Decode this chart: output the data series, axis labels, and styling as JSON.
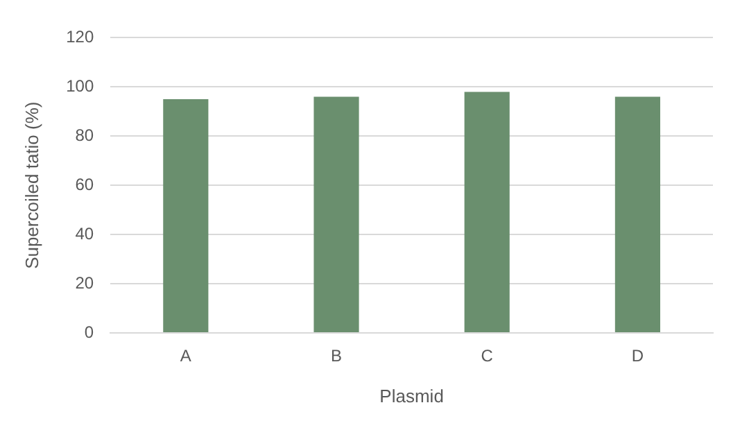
{
  "chart_data": {
    "type": "bar",
    "xlabel": "Plasmid",
    "ylabel": "Supercoiled tatio (%)",
    "categories": [
      "A",
      "B",
      "C",
      "D"
    ],
    "values": [
      95,
      96,
      98,
      96
    ],
    "color": "#6a8f6e",
    "ylim": [
      0,
      120
    ],
    "yticks": [
      0,
      20,
      40,
      60,
      80,
      100,
      120
    ],
    "grid": "y",
    "legend": false
  }
}
